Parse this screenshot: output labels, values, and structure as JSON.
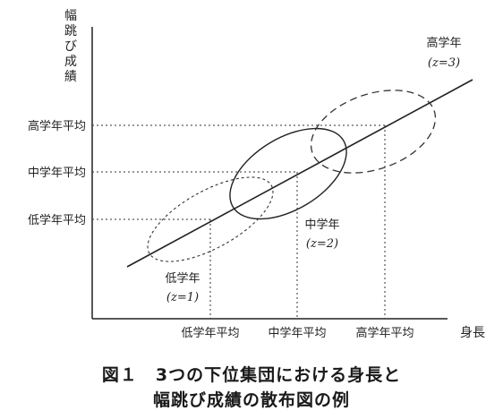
{
  "diagram": {
    "y_axis_label": [
      "幅",
      "跳",
      "び",
      "成",
      "績"
    ],
    "x_axis_label": "身長",
    "y_ticks": [
      "高学年平均",
      "中学年平均",
      "低学年平均"
    ],
    "x_ticks": [
      "低学年平均",
      "中学年平均",
      "高学年平均"
    ],
    "groups": [
      {
        "name": "低学年",
        "z": "(z=1)"
      },
      {
        "name": "中学年",
        "z": "(z=2)"
      },
      {
        "name": "高学年",
        "z": "(z=3)"
      }
    ]
  },
  "caption": {
    "line1": "図１　3つの下位集団における身長と",
    "line2": "幅跳び成績の散布図の例"
  }
}
